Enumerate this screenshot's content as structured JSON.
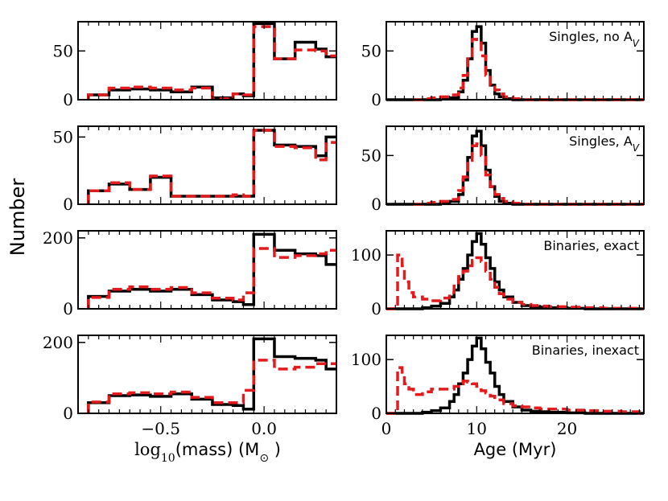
{
  "figure": {
    "ylabel": "Number",
    "colors": {
      "model_a": "#000000",
      "model_b": "#e41a1c"
    }
  },
  "chart_data": [
    {
      "id": "mass-singles-noAv",
      "type": "step-histogram",
      "xvar": "mass",
      "ylim": [
        0,
        80
      ],
      "yticks": [
        0,
        50
      ],
      "bins": [
        -0.85,
        -0.75,
        -0.65,
        -0.55,
        -0.45,
        -0.35,
        -0.25,
        -0.15,
        -0.1,
        -0.05,
        0.05,
        0.15,
        0.25,
        0.3
      ],
      "series": [
        {
          "name": "black",
          "values": [
            5,
            10,
            11,
            10,
            8,
            13,
            2,
            6,
            4,
            78,
            42,
            59,
            52,
            44
          ]
        },
        {
          "name": "red",
          "values": [
            5,
            12,
            13,
            12,
            10,
            12,
            1,
            6,
            5,
            75,
            42,
            51,
            50,
            45
          ]
        }
      ],
      "annotation": "Singles, no A"
    },
    {
      "id": "mass-singles-Av",
      "type": "step-histogram",
      "xvar": "mass",
      "ylim": [
        0,
        58
      ],
      "yticks": [
        0,
        50
      ],
      "bins": [
        -0.85,
        -0.75,
        -0.65,
        -0.55,
        -0.45,
        -0.35,
        -0.25,
        -0.15,
        -0.1,
        -0.05,
        0.05,
        0.15,
        0.25,
        0.3
      ],
      "series": [
        {
          "name": "black",
          "values": [
            10,
            15,
            11,
            20,
            6,
            6,
            6,
            6,
            6,
            55,
            44,
            43,
            36,
            50
          ]
        },
        {
          "name": "red",
          "values": [
            10,
            16,
            11,
            21,
            6,
            6,
            6,
            7,
            6,
            55,
            43,
            42,
            33,
            46
          ]
        }
      ],
      "annotation": "Singles, A"
    },
    {
      "id": "mass-binaries-exact",
      "type": "step-histogram",
      "xvar": "mass",
      "ylim": [
        0,
        220
      ],
      "yticks": [
        0,
        200
      ],
      "bins": [
        -0.85,
        -0.75,
        -0.65,
        -0.55,
        -0.45,
        -0.35,
        -0.25,
        -0.15,
        -0.1,
        -0.05,
        0.05,
        0.15,
        0.25,
        0.3
      ],
      "series": [
        {
          "name": "black",
          "values": [
            35,
            50,
            55,
            50,
            55,
            40,
            25,
            20,
            12,
            210,
            165,
            155,
            150,
            125
          ]
        },
        {
          "name": "red",
          "values": [
            32,
            55,
            62,
            55,
            60,
            45,
            30,
            25,
            45,
            170,
            145,
            150,
            155,
            165
          ]
        }
      ],
      "annotation": "Binaries, exact"
    },
    {
      "id": "mass-binaries-inexact",
      "type": "step-histogram",
      "xvar": "mass",
      "ylim": [
        0,
        220
      ],
      "yticks": [
        0,
        200
      ],
      "bins": [
        -0.85,
        -0.75,
        -0.65,
        -0.55,
        -0.45,
        -0.35,
        -0.25,
        -0.15,
        -0.1,
        -0.05,
        0.05,
        0.15,
        0.25,
        0.3
      ],
      "series": [
        {
          "name": "black",
          "values": [
            30,
            50,
            52,
            48,
            55,
            40,
            25,
            22,
            12,
            210,
            160,
            155,
            150,
            125
          ]
        },
        {
          "name": "red",
          "values": [
            32,
            55,
            58,
            55,
            60,
            45,
            30,
            30,
            65,
            150,
            125,
            130,
            140,
            140
          ]
        }
      ],
      "annotation": "Binaries, inexact"
    },
    {
      "id": "age-singles-noAv",
      "type": "step-histogram",
      "xvar": "age",
      "ylim": [
        0,
        80
      ],
      "yticks": [
        0,
        50
      ],
      "series": [
        {
          "name": "black",
          "points": [
            [
              0,
              0
            ],
            [
              4,
              0
            ],
            [
              5,
              0
            ],
            [
              6,
              1
            ],
            [
              7,
              2
            ],
            [
              8,
              8
            ],
            [
              8.5,
              20
            ],
            [
              9,
              42
            ],
            [
              9.5,
              70
            ],
            [
              10,
              75
            ],
            [
              10.5,
              58
            ],
            [
              11,
              30
            ],
            [
              11.5,
              15
            ],
            [
              12,
              6
            ],
            [
              12.5,
              3
            ],
            [
              13,
              1
            ],
            [
              14,
              0
            ],
            [
              28,
              0
            ]
          ]
        },
        {
          "name": "red",
          "points": [
            [
              3,
              0
            ],
            [
              4,
              1
            ],
            [
              5,
              2
            ],
            [
              6,
              3
            ],
            [
              7,
              5
            ],
            [
              8,
              12
            ],
            [
              8.5,
              25
            ],
            [
              9,
              45
            ],
            [
              9.5,
              62
            ],
            [
              10,
              60
            ],
            [
              10.5,
              45
            ],
            [
              11,
              25
            ],
            [
              11.5,
              15
            ],
            [
              12,
              10
            ],
            [
              12.5,
              6
            ],
            [
              13,
              3
            ],
            [
              14,
              1
            ],
            [
              15,
              0
            ],
            [
              28,
              0
            ]
          ]
        }
      ],
      "annotation": "Singles, no A"
    },
    {
      "id": "age-singles-Av",
      "type": "step-histogram",
      "xvar": "age",
      "ylim": [
        0,
        80
      ],
      "yticks": [
        0,
        50
      ],
      "series": [
        {
          "name": "black",
          "points": [
            [
              0,
              0
            ],
            [
              4,
              0
            ],
            [
              5,
              0
            ],
            [
              6,
              1
            ],
            [
              7,
              3
            ],
            [
              8,
              10
            ],
            [
              8.5,
              25
            ],
            [
              9,
              48
            ],
            [
              9.5,
              70
            ],
            [
              10,
              75
            ],
            [
              10.5,
              60
            ],
            [
              11,
              35
            ],
            [
              11.5,
              18
            ],
            [
              12,
              8
            ],
            [
              12.5,
              3
            ],
            [
              13,
              1
            ],
            [
              14,
              0
            ],
            [
              28,
              0
            ]
          ]
        },
        {
          "name": "red",
          "points": [
            [
              3,
              0
            ],
            [
              4,
              1
            ],
            [
              5,
              2
            ],
            [
              6,
              3
            ],
            [
              7,
              5
            ],
            [
              8,
              14
            ],
            [
              8.5,
              28
            ],
            [
              9,
              45
            ],
            [
              9.5,
              60
            ],
            [
              10,
              62
            ],
            [
              10.5,
              50
            ],
            [
              11,
              30
            ],
            [
              11.5,
              18
            ],
            [
              12,
              10
            ],
            [
              12.5,
              6
            ],
            [
              13,
              3
            ],
            [
              14,
              1
            ],
            [
              15,
              0
            ],
            [
              28,
              0
            ]
          ]
        }
      ],
      "annotation": "Singles, A"
    },
    {
      "id": "age-binaries-exact",
      "type": "step-histogram",
      "xvar": "age",
      "ylim": [
        0,
        145
      ],
      "yticks": [
        0,
        100
      ],
      "series": [
        {
          "name": "black",
          "points": [
            [
              0,
              0
            ],
            [
              3,
              0
            ],
            [
              4,
              2
            ],
            [
              5,
              5
            ],
            [
              6,
              10
            ],
            [
              7,
              22
            ],
            [
              7.5,
              35
            ],
            [
              8,
              55
            ],
            [
              8.5,
              75
            ],
            [
              9,
              100
            ],
            [
              9.5,
              125
            ],
            [
              10,
              140
            ],
            [
              10.5,
              120
            ],
            [
              11,
              95
            ],
            [
              11.5,
              75
            ],
            [
              12,
              50
            ],
            [
              12.5,
              35
            ],
            [
              13,
              22
            ],
            [
              14,
              12
            ],
            [
              15,
              6
            ],
            [
              16,
              4
            ],
            [
              17,
              3
            ],
            [
              18,
              2
            ],
            [
              20,
              1
            ],
            [
              22,
              0
            ],
            [
              28,
              0
            ]
          ]
        },
        {
          "name": "red",
          "points": [
            [
              0,
              0
            ],
            [
              1,
              0
            ],
            [
              1.25,
              100
            ],
            [
              1.75,
              80
            ],
            [
              2,
              50
            ],
            [
              2.5,
              30
            ],
            [
              3,
              22
            ],
            [
              4,
              18
            ],
            [
              5,
              15
            ],
            [
              6,
              20
            ],
            [
              7,
              30
            ],
            [
              7.5,
              45
            ],
            [
              8,
              60
            ],
            [
              8.5,
              70
            ],
            [
              9,
              80
            ],
            [
              9.5,
              90
            ],
            [
              10,
              95
            ],
            [
              10.5,
              88
            ],
            [
              11,
              70
            ],
            [
              11.5,
              55
            ],
            [
              12,
              40
            ],
            [
              12.5,
              28
            ],
            [
              13,
              18
            ],
            [
              14,
              12
            ],
            [
              15,
              8
            ],
            [
              16,
              6
            ],
            [
              17,
              5
            ],
            [
              18,
              4
            ],
            [
              20,
              3
            ],
            [
              22,
              2
            ],
            [
              24,
              1
            ],
            [
              26,
              1
            ],
            [
              28,
              0
            ]
          ]
        }
      ],
      "annotation": "Binaries, exact"
    },
    {
      "id": "age-binaries-inexact",
      "type": "step-histogram",
      "xvar": "age",
      "ylim": [
        0,
        145
      ],
      "yticks": [
        0,
        100
      ],
      "series": [
        {
          "name": "black",
          "points": [
            [
              0,
              0
            ],
            [
              3,
              0
            ],
            [
              4,
              2
            ],
            [
              5,
              5
            ],
            [
              6,
              10
            ],
            [
              7,
              22
            ],
            [
              7.5,
              35
            ],
            [
              8,
              55
            ],
            [
              8.5,
              75
            ],
            [
              9,
              100
            ],
            [
              9.5,
              125
            ],
            [
              10,
              140
            ],
            [
              10.5,
              120
            ],
            [
              11,
              95
            ],
            [
              11.5,
              75
            ],
            [
              12,
              50
            ],
            [
              12.5,
              35
            ],
            [
              13,
              22
            ],
            [
              14,
              12
            ],
            [
              15,
              6
            ],
            [
              16,
              4
            ],
            [
              17,
              3
            ],
            [
              18,
              2
            ],
            [
              20,
              1
            ],
            [
              22,
              0
            ],
            [
              28,
              0
            ]
          ]
        },
        {
          "name": "red",
          "points": [
            [
              0,
              0
            ],
            [
              1,
              0
            ],
            [
              1.25,
              85
            ],
            [
              1.75,
              70
            ],
            [
              2,
              55
            ],
            [
              2.5,
              45
            ],
            [
              3,
              35
            ],
            [
              4,
              40
            ],
            [
              5,
              45
            ],
            [
              6,
              45
            ],
            [
              7,
              45
            ],
            [
              7.5,
              50
            ],
            [
              8,
              55
            ],
            [
              8.5,
              60
            ],
            [
              9,
              58
            ],
            [
              9.5,
              55
            ],
            [
              10,
              50
            ],
            [
              10.5,
              42
            ],
            [
              11,
              38
            ],
            [
              11.5,
              32
            ],
            [
              12,
              25
            ],
            [
              13,
              18
            ],
            [
              14,
              14
            ],
            [
              15,
              12
            ],
            [
              16,
              10
            ],
            [
              17,
              8
            ],
            [
              18,
              8
            ],
            [
              20,
              6
            ],
            [
              22,
              5
            ],
            [
              24,
              4
            ],
            [
              26,
              3
            ],
            [
              28,
              0
            ]
          ]
        }
      ],
      "annotation": "Binaries, inexact"
    }
  ],
  "xaxes": {
    "mass": {
      "xlim": [
        -0.9,
        0.35
      ],
      "ticks": [
        -0.5,
        0.0
      ],
      "tick_labels": [
        "−0.5",
        "0.0"
      ],
      "xlabel_prefix": "log",
      "xlabel_sub": "10",
      "xlabel_body": "(mass) (M",
      "xlabel_sunsym": "⊙",
      "xlabel_close": " )"
    },
    "age": {
      "xlim": [
        0,
        28.5
      ],
      "ticks": [
        0,
        10,
        20
      ],
      "tick_labels": [
        "0",
        "10",
        "20"
      ],
      "xlabel": "Age (Myr)"
    }
  },
  "annotation_subscript": "V"
}
